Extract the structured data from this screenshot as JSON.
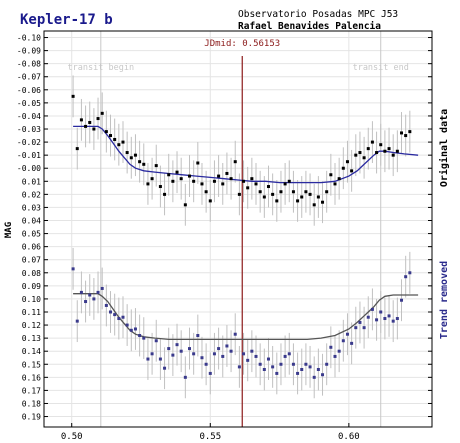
{
  "chart_data": {
    "type": "scatter",
    "title": "Kepler-17 b",
    "subtitle_line1": "Observatorio Posadas MPC J53",
    "subtitle_line2": "Rafael Benavides Palencia",
    "ylabel": "MAG",
    "jdmid_label": "JDmid: 0.56153",
    "jdmid": 0.56153,
    "transit_begin_label": "transit begin",
    "transit_end_label": "transit end",
    "transit_begin": 0.5105,
    "transit_end": 0.6115,
    "right_label_top": "Original data",
    "right_label_bottom": "Trend removed",
    "xlim": [
      0.49,
      0.63
    ],
    "ylim": [
      -0.105,
      0.198
    ],
    "y_inverted": true,
    "x_ticks": [
      "0.50",
      "0.55",
      "0.60"
    ],
    "x_tick_values": [
      0.5,
      0.55,
      0.6
    ],
    "y_tick_values": [
      -0.1,
      -0.09,
      -0.08,
      -0.07,
      -0.06,
      -0.05,
      -0.04,
      -0.03,
      -0.02,
      -0.01,
      0.0,
      0.01,
      0.02,
      0.03,
      0.04,
      0.05,
      0.06,
      0.07,
      0.08,
      0.09,
      0.1,
      0.11,
      0.12,
      0.13,
      0.14,
      0.15,
      0.16,
      0.17,
      0.18,
      0.19
    ],
    "y_tick_labels": [
      "-0.10",
      "-0.09",
      "-0.08",
      "-0.07",
      "-0.06",
      "-0.05",
      "-0.04",
      "-0.03",
      "-0.02",
      "-0.01",
      "-0.00",
      "0.01",
      "0.02",
      "0.03",
      "0.04",
      "0.05",
      "0.06",
      "0.07",
      "0.08",
      "0.09",
      "0.10",
      "0.11",
      "0.12",
      "0.13",
      "0.14",
      "0.15",
      "0.16",
      "0.17",
      "0.18",
      "0.19"
    ],
    "error_bar": 0.016,
    "colors": {
      "title": "#1a1a8c",
      "original_points": "#000000",
      "trend_points": "#3a3a8c",
      "fit_original": "#2a2aa0",
      "fit_trend": "#555555",
      "jdmid_line": "#8b1a1a",
      "transit_line": "#c8c8c8",
      "error_bars": "#c0c0c0",
      "grid": "#e4e4e4",
      "right_label_bottom": "#2a2a8c"
    },
    "series": [
      {
        "name": "Original data",
        "x": [
          0.5005,
          0.502,
          0.5035,
          0.505,
          0.5065,
          0.508,
          0.5095,
          0.511,
          0.5125,
          0.514,
          0.5155,
          0.517,
          0.5185,
          0.52,
          0.5215,
          0.523,
          0.5245,
          0.526,
          0.5275,
          0.529,
          0.5305,
          0.532,
          0.5335,
          0.535,
          0.5365,
          0.538,
          0.5395,
          0.541,
          0.5425,
          0.544,
          0.5455,
          0.547,
          0.5485,
          0.55,
          0.5515,
          0.553,
          0.5545,
          0.556,
          0.5575,
          0.559,
          0.5605,
          0.562,
          0.5635,
          0.565,
          0.5665,
          0.568,
          0.5695,
          0.571,
          0.5725,
          0.574,
          0.5755,
          0.577,
          0.5785,
          0.58,
          0.5815,
          0.583,
          0.5845,
          0.586,
          0.5875,
          0.589,
          0.5905,
          0.592,
          0.5935,
          0.595,
          0.5965,
          0.598,
          0.5995,
          0.601,
          0.6025,
          0.604,
          0.6055,
          0.607,
          0.6085,
          0.61,
          0.6115,
          0.613,
          0.6145,
          0.616,
          0.6175,
          0.619,
          0.6205,
          0.622
        ],
        "y": [
          -0.055,
          -0.015,
          -0.037,
          -0.032,
          -0.035,
          -0.03,
          -0.038,
          -0.042,
          -0.028,
          -0.025,
          -0.022,
          -0.018,
          -0.02,
          -0.012,
          -0.008,
          -0.01,
          -0.005,
          -0.003,
          0.012,
          0.008,
          -0.002,
          0.014,
          0.02,
          0.005,
          0.01,
          0.003,
          0.008,
          0.028,
          0.006,
          0.01,
          -0.004,
          0.012,
          0.018,
          0.025,
          0.01,
          0.006,
          0.012,
          0.004,
          0.008,
          -0.005,
          0.02,
          0.01,
          0.015,
          0.008,
          0.012,
          0.018,
          0.022,
          0.014,
          0.02,
          0.025,
          0.018,
          0.012,
          0.01,
          0.018,
          0.025,
          0.022,
          0.018,
          0.02,
          0.028,
          0.022,
          0.026,
          0.018,
          0.005,
          0.012,
          0.008,
          0.0,
          -0.005,
          0.002,
          -0.01,
          -0.012,
          -0.008,
          -0.015,
          -0.02,
          -0.012,
          -0.018,
          -0.013,
          -0.015,
          -0.01,
          -0.013,
          -0.027,
          -0.025,
          -0.028
        ]
      },
      {
        "name": "Trend removed",
        "x": [
          0.5005,
          0.502,
          0.5035,
          0.505,
          0.5065,
          0.508,
          0.5095,
          0.511,
          0.5125,
          0.514,
          0.5155,
          0.517,
          0.5185,
          0.52,
          0.5215,
          0.523,
          0.5245,
          0.526,
          0.5275,
          0.529,
          0.5305,
          0.532,
          0.5335,
          0.535,
          0.5365,
          0.538,
          0.5395,
          0.541,
          0.5425,
          0.544,
          0.5455,
          0.547,
          0.5485,
          0.55,
          0.5515,
          0.553,
          0.5545,
          0.556,
          0.5575,
          0.559,
          0.5605,
          0.562,
          0.5635,
          0.565,
          0.5665,
          0.568,
          0.5695,
          0.571,
          0.5725,
          0.574,
          0.5755,
          0.577,
          0.5785,
          0.58,
          0.5815,
          0.583,
          0.5845,
          0.586,
          0.5875,
          0.589,
          0.5905,
          0.592,
          0.5935,
          0.595,
          0.5965,
          0.598,
          0.5995,
          0.601,
          0.6025,
          0.604,
          0.6055,
          0.607,
          0.6085,
          0.61,
          0.6115,
          0.613,
          0.6145,
          0.616,
          0.6175,
          0.619,
          0.6205,
          0.622
        ],
        "y": [
          0.077,
          0.117,
          0.095,
          0.102,
          0.097,
          0.1,
          0.095,
          0.092,
          0.105,
          0.11,
          0.112,
          0.115,
          0.114,
          0.12,
          0.124,
          0.123,
          0.128,
          0.13,
          0.146,
          0.142,
          0.132,
          0.146,
          0.153,
          0.138,
          0.143,
          0.135,
          0.14,
          0.16,
          0.138,
          0.142,
          0.128,
          0.145,
          0.15,
          0.157,
          0.142,
          0.138,
          0.144,
          0.136,
          0.14,
          0.127,
          0.152,
          0.142,
          0.147,
          0.14,
          0.144,
          0.15,
          0.154,
          0.146,
          0.152,
          0.157,
          0.15,
          0.144,
          0.142,
          0.15,
          0.157,
          0.154,
          0.15,
          0.152,
          0.16,
          0.154,
          0.158,
          0.15,
          0.137,
          0.144,
          0.14,
          0.132,
          0.127,
          0.134,
          0.122,
          0.118,
          0.122,
          0.114,
          0.108,
          0.116,
          0.11,
          0.115,
          0.113,
          0.117,
          0.115,
          0.101,
          0.083,
          0.08
        ]
      }
    ],
    "fit_original": {
      "x": [
        0.5005,
        0.505,
        0.5095,
        0.511,
        0.513,
        0.515,
        0.517,
        0.519,
        0.521,
        0.523,
        0.526,
        0.53,
        0.535,
        0.54,
        0.545,
        0.55,
        0.555,
        0.56,
        0.565,
        0.57,
        0.575,
        0.58,
        0.585,
        0.59,
        0.595,
        0.6,
        0.603,
        0.605,
        0.607,
        0.609,
        0.611,
        0.613,
        0.616,
        0.62,
        0.625
      ],
      "y": [
        -0.032,
        -0.032,
        -0.032,
        -0.03,
        -0.025,
        -0.019,
        -0.013,
        -0.008,
        -0.003,
        0.0,
        0.002,
        0.003,
        0.004,
        0.005,
        0.006,
        0.007,
        0.008,
        0.009,
        0.01,
        0.01,
        0.011,
        0.011,
        0.011,
        0.011,
        0.01,
        0.006,
        0.002,
        -0.002,
        -0.006,
        -0.01,
        -0.013,
        -0.013,
        -0.012,
        -0.011,
        -0.01
      ]
    },
    "fit_trend": {
      "x": [
        0.5005,
        0.505,
        0.5095,
        0.511,
        0.513,
        0.515,
        0.517,
        0.519,
        0.521,
        0.523,
        0.526,
        0.53,
        0.535,
        0.54,
        0.545,
        0.55,
        0.555,
        0.56,
        0.565,
        0.57,
        0.575,
        0.58,
        0.585,
        0.59,
        0.595,
        0.6,
        0.603,
        0.605,
        0.607,
        0.609,
        0.611,
        0.613,
        0.616,
        0.62,
        0.625
      ],
      "y": [
        0.096,
        0.096,
        0.096,
        0.098,
        0.102,
        0.108,
        0.114,
        0.119,
        0.124,
        0.127,
        0.129,
        0.13,
        0.131,
        0.131,
        0.131,
        0.131,
        0.131,
        0.131,
        0.131,
        0.131,
        0.131,
        0.131,
        0.131,
        0.13,
        0.128,
        0.123,
        0.118,
        0.114,
        0.11,
        0.106,
        0.101,
        0.098,
        0.097,
        0.097,
        0.097
      ]
    }
  }
}
